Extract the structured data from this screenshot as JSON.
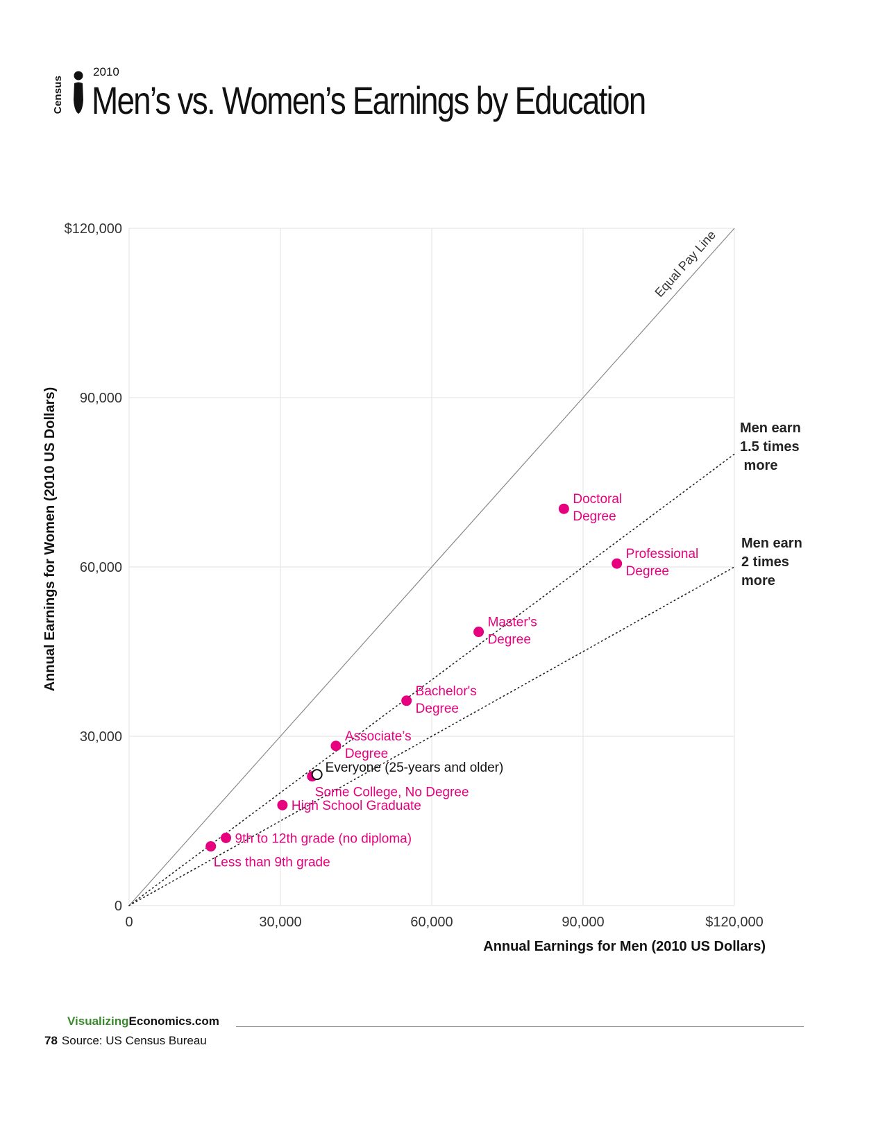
{
  "header": {
    "logo_text": "Census",
    "year": "2010",
    "title": "Men’s vs. Women’s Earnings by Education"
  },
  "chart_data": {
    "type": "scatter",
    "title": "Men’s vs. Women’s Earnings by Education",
    "xlabel": "Annual Earnings for Men (2010 US Dollars)",
    "ylabel": "Annual Earnings for Women (2010 US Dollars)",
    "xlim": [
      0,
      120000
    ],
    "ylim": [
      0,
      120000
    ],
    "grid": true,
    "x_ticks": [
      {
        "value": 0,
        "label": "0"
      },
      {
        "value": 30000,
        "label": "30,000"
      },
      {
        "value": 60000,
        "label": "60,000"
      },
      {
        "value": 90000,
        "label": "90,000"
      },
      {
        "value": 120000,
        "label": "$120,000"
      }
    ],
    "y_ticks": [
      {
        "value": 0,
        "label": "0"
      },
      {
        "value": 30000,
        "label": "30,000"
      },
      {
        "value": 60000,
        "label": "60,000"
      },
      {
        "value": 90000,
        "label": "90,000"
      },
      {
        "value": 120000,
        "label": "$120,000"
      }
    ],
    "colors": {
      "education": "#e6007e",
      "everyone": "#111111",
      "grid": "#e6e6e6",
      "equal_line": "#888888"
    },
    "points": [
      {
        "label": "Less than 9th grade",
        "x": 16200,
        "y": 10500,
        "style": "education",
        "anchor": "below-right"
      },
      {
        "label": "9th to 12th grade (no diploma)",
        "x": 19200,
        "y": 12000,
        "style": "education",
        "anchor": "right"
      },
      {
        "label": "High School Graduate",
        "x": 30400,
        "y": 17800,
        "style": "education",
        "anchor": "right"
      },
      {
        "label": "Some College, No Degree",
        "x": 36300,
        "y": 22900,
        "style": "education",
        "anchor": "below-right"
      },
      {
        "label": "Everyone (25-years and older)",
        "x": 36700,
        "y": 23100,
        "style": "everyone",
        "anchor": "above-right"
      },
      {
        "label": "Associate's Degree",
        "lines": [
          "Associate’s",
          "Degree"
        ],
        "x": 41000,
        "y": 28300,
        "style": "education",
        "anchor": "right"
      },
      {
        "label": "Bachelor's Degree",
        "lines": [
          "Bachelor's",
          "Degree"
        ],
        "x": 55000,
        "y": 36300,
        "style": "education",
        "anchor": "right"
      },
      {
        "label": "Master's Degree",
        "lines": [
          "Master's",
          "Degree"
        ],
        "x": 69300,
        "y": 48500,
        "style": "education",
        "anchor": "right"
      },
      {
        "label": "Doctoral Degree",
        "lines": [
          "Doctoral",
          "Degree"
        ],
        "x": 86200,
        "y": 70300,
        "style": "education",
        "anchor": "right"
      },
      {
        "label": "Professional Degree",
        "lines": [
          "Professional",
          "Degree"
        ],
        "x": 96700,
        "y": 60600,
        "style": "education",
        "anchor": "right"
      }
    ],
    "reference_lines": [
      {
        "name": "Equal Pay Line",
        "ratio": 1.0,
        "style": "solid"
      },
      {
        "name": "Men earn 1.5 times more",
        "ratio": 1.5,
        "style": "dotted",
        "lines": [
          "Men earn",
          "1.5 times",
          " more"
        ]
      },
      {
        "name": "Men earn 2 times more",
        "ratio": 2.0,
        "style": "dotted",
        "lines": [
          "Men earn",
          "2 times",
          "more"
        ]
      }
    ]
  },
  "footer": {
    "brand_green": "Visualizing",
    "brand_dark": "Economics.com",
    "page_number": "78",
    "source": "Source: US Census Bureau"
  }
}
